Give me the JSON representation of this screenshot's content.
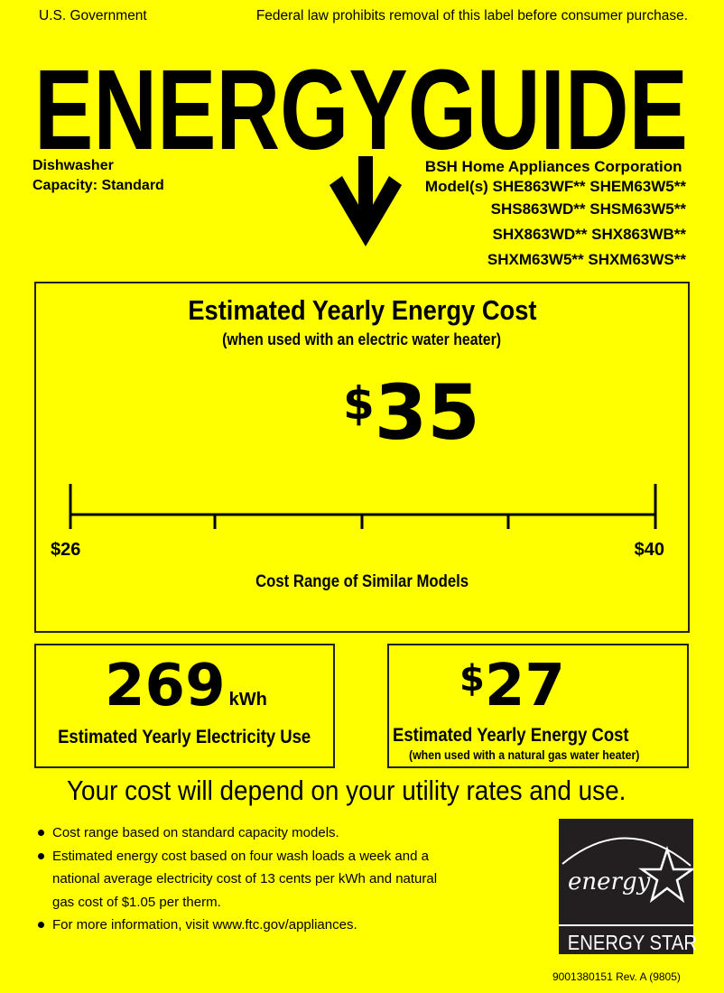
{
  "header": {
    "left": "U.S. Government",
    "right": "Federal law prohibits removal of this label before consumer purchase."
  },
  "title": "ENERGYGUIDE",
  "product": {
    "type": "Dishwasher",
    "capacity": "Capacity: Standard",
    "manufacturer": "BSH Home Appliances Corporation",
    "model_lines": [
      "Model(s) SHE863WF** SHEM63W5**",
      "SHS863WD** SHSM63W5**",
      "SHX863WD** SHX863WB**",
      "SHXM63W5** SHXM63WS**"
    ]
  },
  "main": {
    "title": "Estimated Yearly Energy Cost",
    "subtitle": "(when used with an electric water heater)",
    "cost_symbol": "$",
    "cost_value": "35",
    "range_min_label": "$26",
    "range_max_label": "$40",
    "range_min": 26,
    "range_max": 40,
    "value": 35,
    "range_caption": "Cost Range of Similar Models"
  },
  "electricity": {
    "value": "269",
    "unit": "kWh",
    "label": "Estimated Yearly Electricity Use"
  },
  "gas": {
    "symbol": "$",
    "value": "27",
    "label": "Estimated Yearly Energy Cost",
    "sublabel": "(when used with a natural gas water heater)"
  },
  "tagline": "Your cost will depend on your utility rates and use.",
  "bullets": [
    "Cost range based on standard capacity models.",
    "Estimated energy cost based on four wash loads a week and a",
    "national average electricity cost of 13 cents per kWh and natural",
    "gas cost of $1.05 per therm.",
    "For more information, visit www.ftc.gov/appliances."
  ],
  "logo": {
    "script": "energy",
    "label": "ENERGY STAR"
  },
  "footer": "9001380151 Rev. A (9805)",
  "colors": {
    "background": "#ffff00",
    "ink": "#000000",
    "logo_bg": "#231f20"
  }
}
